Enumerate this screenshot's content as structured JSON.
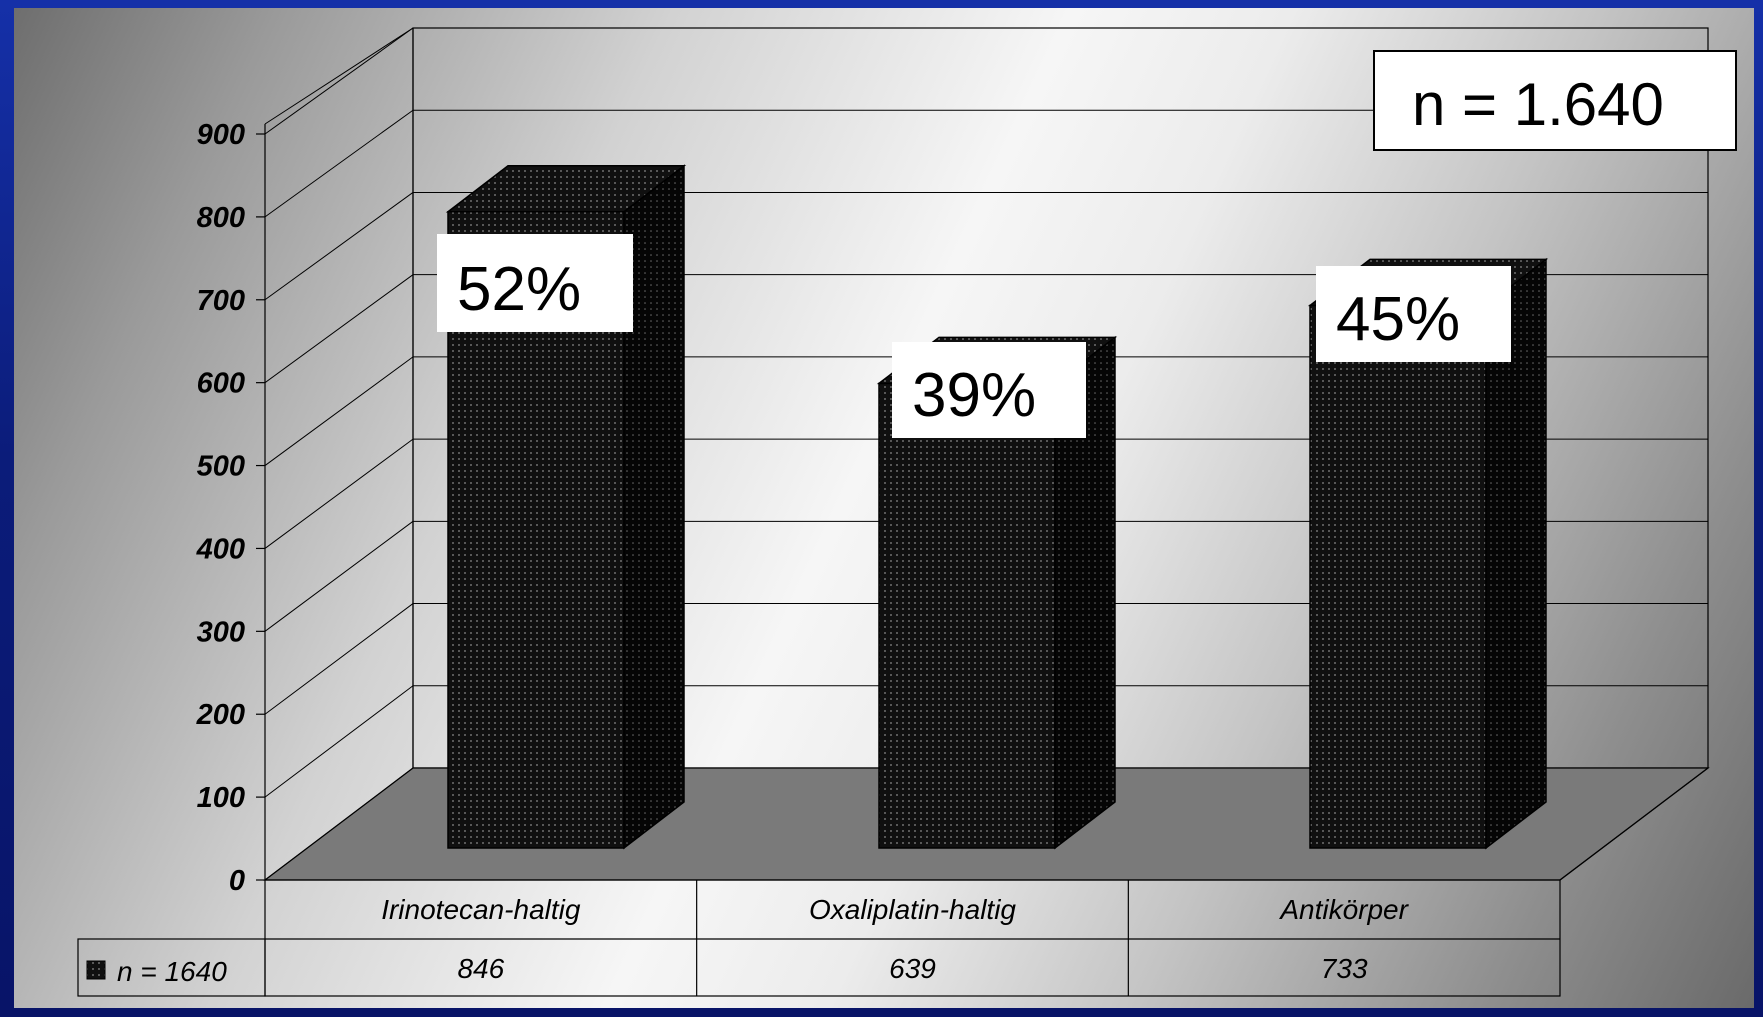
{
  "annotation_n": "n = 1.640",
  "chart_data": {
    "type": "bar",
    "categories": [
      "Irinotecan-haltig",
      "Oxaliplatin-haltig",
      "Antikörper"
    ],
    "series": [
      {
        "name": "n = 1640",
        "values": [
          846,
          639,
          733
        ]
      }
    ],
    "percent_labels": [
      "52%",
      "39%",
      "45%"
    ],
    "value_labels": [
      "846",
      "639",
      "733"
    ],
    "yticks": [
      "0",
      "100",
      "200",
      "300",
      "400",
      "500",
      "600",
      "700",
      "800",
      "900"
    ],
    "ylim": [
      0,
      900
    ],
    "grid": true,
    "legend": "data-table",
    "style": "3d",
    "colors": {
      "bar": "#111111",
      "floor": "#7a7a7a",
      "background": "#0b1c7a"
    }
  }
}
